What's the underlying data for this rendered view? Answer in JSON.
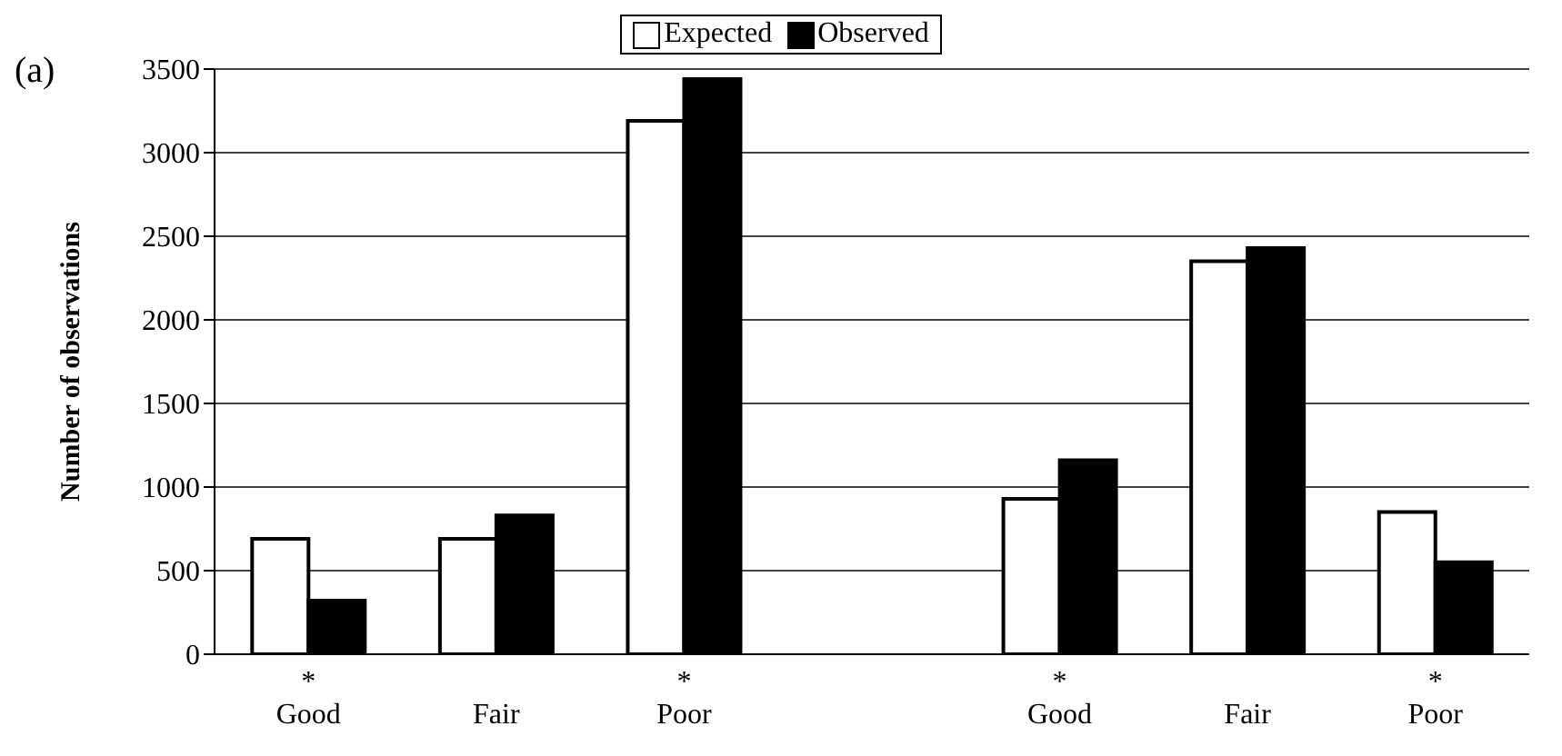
{
  "chart_data": {
    "type": "bar",
    "ylabel": "Number of observations",
    "annotations": [
      "(a)"
    ],
    "categories": [
      "*\nGood",
      "Fair",
      "*\nPoor",
      null,
      "*\nGood",
      "Fair",
      "*\nPoor"
    ],
    "series": [
      {
        "name": "Expected",
        "color": "#ffffff",
        "values": [
          690,
          690,
          3190,
          null,
          930,
          2350,
          850
        ]
      },
      {
        "name": "Observed",
        "color": "#000000",
        "values": [
          320,
          830,
          3440,
          null,
          1160,
          2430,
          550
        ]
      }
    ],
    "ylim": [
      0,
      3500
    ],
    "yticks": [
      0,
      500,
      1000,
      1500,
      2000,
      2500,
      3000,
      3500
    ],
    "grid": "y",
    "legend": "top"
  }
}
